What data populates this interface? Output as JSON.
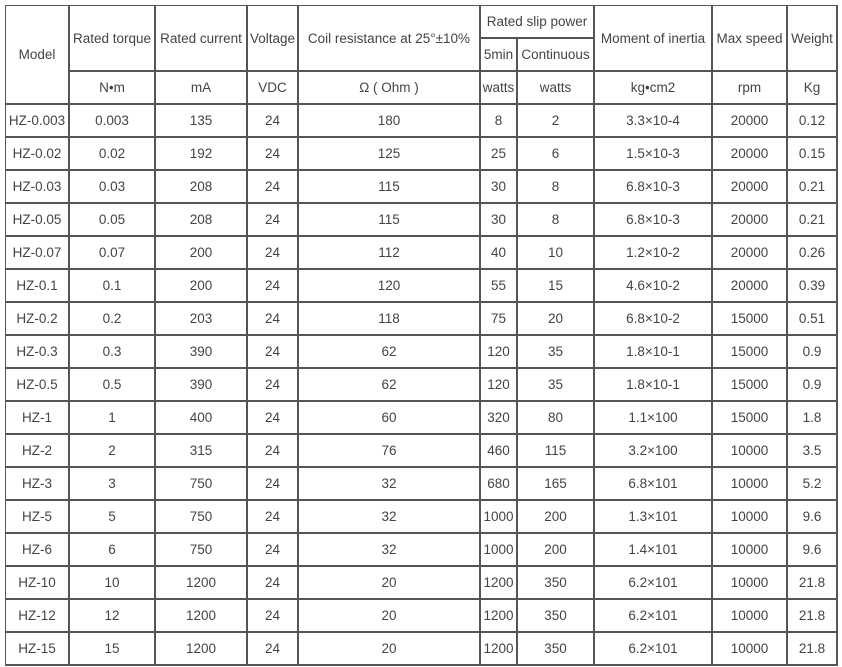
{
  "header": {
    "model": "Model",
    "rated_torque": "Rated torque",
    "rated_current": "Rated current",
    "voltage": "Voltage",
    "coil_resistance": "Coil resistance at 25°±10%",
    "rated_slip_power": "Rated slip power",
    "slip_5min": "5min",
    "slip_continuous": "Continuous",
    "moment_of_inertia": "Moment of inertia",
    "max_speed": "Max speed",
    "weight": "Weight"
  },
  "units": [
    "N•m",
    "mA",
    "VDC",
    "Ω ( Ohm )",
    "watts",
    "watts",
    "kg•cm2",
    "rpm",
    "Kg"
  ],
  "rows": [
    [
      "HZ-0.003",
      "0.003",
      "135",
      "24",
      "180",
      "8",
      "2",
      "3.3×10-4",
      "20000",
      "0.12"
    ],
    [
      "HZ-0.02",
      "0.02",
      "192",
      "24",
      "125",
      "25",
      "6",
      "1.5×10-3",
      "20000",
      "0.15"
    ],
    [
      "HZ-0.03",
      "0.03",
      "208",
      "24",
      "115",
      "30",
      "8",
      "6.8×10-3",
      "20000",
      "0.21"
    ],
    [
      "HZ-0.05",
      "0.05",
      "208",
      "24",
      "115",
      "30",
      "8",
      "6.8×10-3",
      "20000",
      "0.21"
    ],
    [
      "HZ-0.07",
      "0.07",
      "200",
      "24",
      "112",
      "40",
      "10",
      "1.2×10-2",
      "20000",
      "0.26"
    ],
    [
      "HZ-0.1",
      "0.1",
      "200",
      "24",
      "120",
      "55",
      "15",
      "4.6×10-2",
      "20000",
      "0.39"
    ],
    [
      "HZ-0.2",
      "0.2",
      "203",
      "24",
      "118",
      "75",
      "20",
      "6.8×10-2",
      "15000",
      "0.51"
    ],
    [
      "HZ-0.3",
      "0.3",
      "390",
      "24",
      "62",
      "120",
      "35",
      "1.8×10-1",
      "15000",
      "0.9"
    ],
    [
      "HZ-0.5",
      "0.5",
      "390",
      "24",
      "62",
      "120",
      "35",
      "1.8×10-1",
      "15000",
      "0.9"
    ],
    [
      "HZ-1",
      "1",
      "400",
      "24",
      "60",
      "320",
      "80",
      "1.1×100",
      "15000",
      "1.8"
    ],
    [
      "HZ-2",
      "2",
      "315",
      "24",
      "76",
      "460",
      "115",
      "3.2×100",
      "10000",
      "3.5"
    ],
    [
      "HZ-3",
      "3",
      "750",
      "24",
      "32",
      "680",
      "165",
      "6.8×101",
      "10000",
      "5.2"
    ],
    [
      "HZ-5",
      "5",
      "750",
      "24",
      "32",
      "1000",
      "200",
      "1.3×101",
      "10000",
      "9.6"
    ],
    [
      "HZ-6",
      "6",
      "750",
      "24",
      "32",
      "1000",
      "200",
      "1.4×101",
      "10000",
      "9.6"
    ],
    [
      "HZ-10",
      "10",
      "1200",
      "24",
      "20",
      "1200",
      "350",
      "6.2×101",
      "10000",
      "21.8"
    ],
    [
      "HZ-12",
      "12",
      "1200",
      "24",
      "20",
      "1200",
      "350",
      "6.2×101",
      "10000",
      "21.8"
    ],
    [
      "HZ-15",
      "15",
      "1200",
      "24",
      "20",
      "1200",
      "350",
      "6.2×101",
      "10000",
      "21.8"
    ]
  ]
}
